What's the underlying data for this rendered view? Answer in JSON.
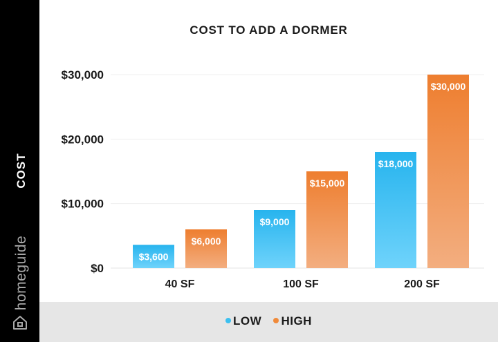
{
  "brand": "homeguide",
  "colors": {
    "low": "#3cc0f0",
    "high": "#f08a3a",
    "sidebar": "#000000",
    "footer": "#e6e6e6"
  },
  "legend": {
    "low_label": "LOW",
    "high_label": "HIGH"
  },
  "chart_data": {
    "type": "bar",
    "title": "COST TO ADD A DORMER",
    "ylabel": "COST",
    "xlabel": "",
    "categories": [
      "40 SF",
      "100 SF",
      "200 SF"
    ],
    "series": [
      {
        "name": "LOW",
        "values": [
          3600,
          9000,
          18000
        ],
        "labels": [
          "$3,600",
          "$9,000",
          "$18,000"
        ]
      },
      {
        "name": "HIGH",
        "values": [
          6000,
          15000,
          30000
        ],
        "labels": [
          "$6,000",
          "$15,000",
          "$30,000"
        ]
      }
    ],
    "ylim": [
      0,
      30000
    ],
    "yticks": [
      0,
      10000,
      20000,
      30000
    ],
    "ytick_labels": [
      "$0",
      "$10,000",
      "$20,000",
      "$30,000"
    ],
    "grid": true,
    "legend_position": "bottom"
  }
}
